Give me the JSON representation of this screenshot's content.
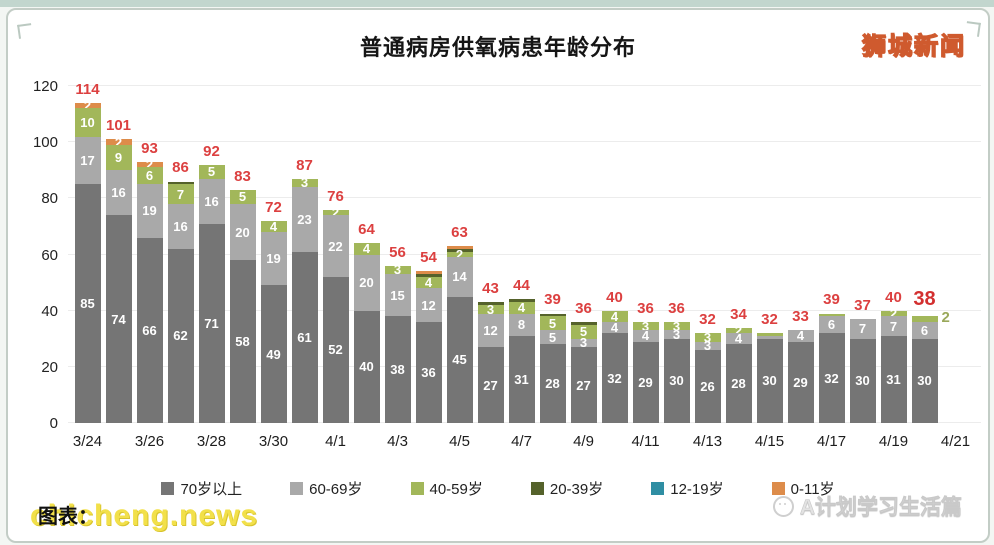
{
  "frame": {
    "site_logo": "狮城新闻",
    "watermark": "chicheng.news",
    "caption_prefix": "图表：",
    "footer_brand": "A计划学习生活篇",
    "footer_brand_icon": "smiley-face-icon"
  },
  "colors": {
    "total_label": "#dc4040",
    "title": "#151515",
    "logo_fill": "#f7dc4e",
    "logo_outline": "#cf5a2e",
    "watermark_yellow": "#f2e04a"
  },
  "chart_data": {
    "type": "bar",
    "subtype": "stacked",
    "title": "普通病房供氧病患年龄分布",
    "xlabel": "",
    "ylabel": "",
    "ylim": [
      0,
      120
    ],
    "yticks": [
      0,
      20,
      40,
      60,
      80,
      100,
      120
    ],
    "grid": "horizontal",
    "legend_position": "bottom",
    "categories": [
      "3/24",
      "3/25",
      "3/26",
      "3/27",
      "3/28",
      "3/29",
      "3/30",
      "3/31",
      "4/1",
      "4/2",
      "4/3",
      "4/4",
      "4/5",
      "4/6",
      "4/7",
      "4/8",
      "4/9",
      "4/10",
      "4/11",
      "4/12",
      "4/13",
      "4/14",
      "4/15",
      "4/16",
      "4/17",
      "4/18",
      "4/19",
      "4/20",
      "4/21"
    ],
    "x_tick_shown_every": 2,
    "series": [
      {
        "key": "age70",
        "label": "70岁以上",
        "color": "#757575"
      },
      {
        "key": "age60",
        "label": "60-69岁",
        "color": "#a9a9a9"
      },
      {
        "key": "age40",
        "label": "40-59岁",
        "color": "#a2b75a"
      },
      {
        "key": "age20",
        "label": "20-39岁",
        "color": "#55622b"
      },
      {
        "key": "age12",
        "label": "12-19岁",
        "color": "#2f8ea3"
      },
      {
        "key": "age0",
        "label": "0-11岁",
        "color": "#dd8c4a"
      }
    ],
    "bars": [
      {
        "date": "3/24",
        "total": 114,
        "values": [
          85,
          17,
          10,
          0,
          0,
          2
        ]
      },
      {
        "date": "3/25",
        "total": 101,
        "values": [
          74,
          16,
          9,
          0,
          0,
          2
        ]
      },
      {
        "date": "3/26",
        "total": 93,
        "values": [
          66,
          19,
          6,
          0,
          0,
          2
        ]
      },
      {
        "date": "3/27",
        "total": 86,
        "values": [
          62,
          16,
          7,
          1,
          0,
          0
        ]
      },
      {
        "date": "3/28",
        "total": 92,
        "values": [
          71,
          16,
          5,
          0,
          0,
          0
        ]
      },
      {
        "date": "3/29",
        "total": 83,
        "values": [
          58,
          20,
          5,
          0,
          0,
          0
        ]
      },
      {
        "date": "3/30",
        "total": 72,
        "values": [
          49,
          19,
          4,
          0,
          0,
          0
        ]
      },
      {
        "date": "3/31",
        "total": 87,
        "values": [
          61,
          23,
          3,
          0,
          0,
          0
        ]
      },
      {
        "date": "4/1",
        "total": 76,
        "values": [
          52,
          22,
          2,
          0,
          0,
          0
        ]
      },
      {
        "date": "4/2",
        "total": 64,
        "values": [
          40,
          20,
          4,
          0,
          0,
          0
        ]
      },
      {
        "date": "4/3",
        "total": 56,
        "values": [
          38,
          15,
          3,
          0,
          0,
          0
        ]
      },
      {
        "date": "4/4",
        "total": 54,
        "values": [
          36,
          12,
          4,
          1,
          0,
          1
        ]
      },
      {
        "date": "4/5",
        "total": 63,
        "values": [
          45,
          14,
          2,
          1,
          0,
          1
        ]
      },
      {
        "date": "4/6",
        "total": 43,
        "values": [
          27,
          12,
          3,
          1,
          0,
          0
        ]
      },
      {
        "date": "4/7",
        "total": 44,
        "values": [
          31,
          8,
          4,
          1,
          0,
          0
        ]
      },
      {
        "date": "4/8",
        "total": 39,
        "values": [
          28,
          5,
          5,
          1,
          0,
          0
        ]
      },
      {
        "date": "4/9",
        "total": 36,
        "values": [
          27,
          3,
          5,
          1,
          0,
          0
        ]
      },
      {
        "date": "4/10",
        "total": 40,
        "values": [
          32,
          4,
          4,
          0,
          0,
          0
        ]
      },
      {
        "date": "4/11",
        "total": 36,
        "values": [
          29,
          4,
          3,
          0,
          0,
          0
        ]
      },
      {
        "date": "4/12",
        "total": 36,
        "values": [
          30,
          3,
          3,
          0,
          0,
          0
        ]
      },
      {
        "date": "4/13",
        "total": 32,
        "values": [
          26,
          3,
          3,
          0,
          0,
          0
        ]
      },
      {
        "date": "4/14",
        "total": 34,
        "values": [
          28,
          4,
          2,
          0,
          0,
          0
        ]
      },
      {
        "date": "4/15",
        "total": 32,
        "values": [
          30,
          1,
          1,
          0,
          0,
          0
        ]
      },
      {
        "date": "4/16",
        "total": 33,
        "values": [
          29,
          4,
          0,
          0,
          0,
          0
        ]
      },
      {
        "date": "4/17",
        "total": 39,
        "values": [
          32,
          6,
          1,
          0,
          0,
          0
        ]
      },
      {
        "date": "4/18",
        "total": 37,
        "values": [
          30,
          7,
          0,
          0,
          0,
          0
        ]
      },
      {
        "date": "4/19",
        "total": 40,
        "values": [
          31,
          7,
          2,
          0,
          0,
          0
        ]
      },
      {
        "date": "4/20",
        "total": 38,
        "values": [
          30,
          6,
          2,
          0,
          0,
          0
        ],
        "emphasis": true,
        "green_label_outside": true
      }
    ]
  }
}
